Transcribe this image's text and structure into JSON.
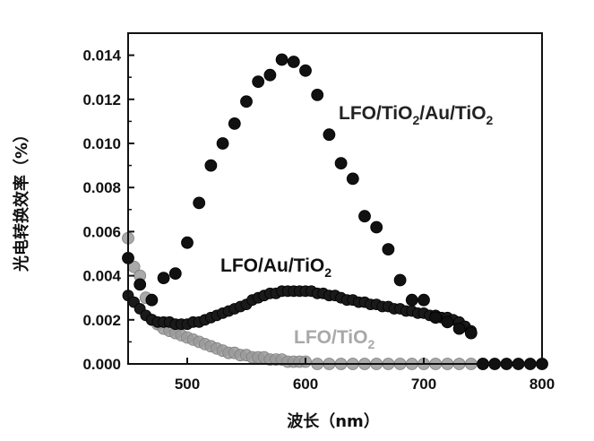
{
  "chart_data": {
    "type": "scatter",
    "xlabel": "波长（nm）",
    "ylabel": "光电转换效率（%）",
    "xlim": [
      450,
      800
    ],
    "ylim": [
      0,
      0.015
    ],
    "x_ticks": [
      "500",
      "600",
      "700",
      "800"
    ],
    "y_ticks": [
      "0.000",
      "0.002",
      "0.004",
      "0.006",
      "0.008",
      "0.010",
      "0.012",
      "0.014"
    ],
    "grid": false,
    "series": [
      {
        "name": "LFO/TiO2/Au/TiO2",
        "label_main": "LFO/TiO",
        "label_sub1": "2",
        "label_mid": "/Au/TiO",
        "label_sub2": "2",
        "color": "#111111",
        "x": [
          450,
          460,
          470,
          480,
          490,
          500,
          510,
          520,
          530,
          540,
          550,
          560,
          570,
          580,
          590,
          600,
          610,
          620,
          630,
          640,
          650,
          660,
          670,
          680,
          690,
          700,
          710,
          720,
          730,
          740,
          750,
          760,
          770,
          780,
          790,
          800
        ],
        "y": [
          0.0048,
          0.0036,
          0.0029,
          0.0039,
          0.0041,
          0.0055,
          0.0073,
          0.009,
          0.01,
          0.0109,
          0.0119,
          0.0128,
          0.0131,
          0.0138,
          0.0137,
          0.0133,
          0.0122,
          0.0104,
          0.0091,
          0.0084,
          0.0067,
          0.0062,
          0.0052,
          0.0038,
          0.0029,
          0.0029,
          0.0021,
          0.0019,
          0.0016,
          0.0014,
          0.0,
          0.0,
          0.0,
          0.0,
          0.0,
          0.0
        ]
      },
      {
        "name": "LFO/Au/TiO2",
        "label_main": "LFO/Au/TiO",
        "label_sub": "2",
        "color": "#1a1a1a",
        "x": [
          450,
          455,
          460,
          465,
          470,
          475,
          480,
          485,
          490,
          495,
          500,
          505,
          510,
          515,
          520,
          525,
          530,
          535,
          540,
          545,
          550,
          555,
          560,
          565,
          570,
          575,
          580,
          585,
          590,
          595,
          600,
          605,
          610,
          615,
          620,
          625,
          630,
          635,
          640,
          645,
          650,
          655,
          660,
          665,
          670,
          675,
          680,
          685,
          690,
          695,
          700,
          705,
          710,
          715,
          720,
          725,
          730,
          735,
          740
        ],
        "y": [
          0.0031,
          0.0028,
          0.0025,
          0.0022,
          0.002,
          0.0019,
          0.0019,
          0.0019,
          0.0018,
          0.0018,
          0.0018,
          0.0019,
          0.0019,
          0.002,
          0.0021,
          0.0022,
          0.0023,
          0.0024,
          0.0025,
          0.0026,
          0.0027,
          0.0029,
          0.003,
          0.0031,
          0.0032,
          0.0032,
          0.0033,
          0.0033,
          0.0033,
          0.0033,
          0.0033,
          0.0033,
          0.0032,
          0.0032,
          0.0031,
          0.0031,
          0.003,
          0.0029,
          0.0029,
          0.0028,
          0.0028,
          0.0027,
          0.0027,
          0.0026,
          0.0026,
          0.0025,
          0.0025,
          0.0024,
          0.0024,
          0.0023,
          0.0023,
          0.0022,
          0.0022,
          0.0021,
          0.0021,
          0.002,
          0.0019,
          0.0017,
          0.0015
        ]
      },
      {
        "name": "LFO/TiO2",
        "label_main": "LFO/TiO",
        "label_sub": "2",
        "color": "#9a9a9a",
        "x": [
          450,
          455,
          460,
          465,
          470,
          475,
          480,
          485,
          490,
          495,
          500,
          505,
          510,
          515,
          520,
          525,
          530,
          535,
          540,
          545,
          550,
          555,
          560,
          565,
          570,
          575,
          580,
          585,
          590,
          595,
          600,
          610,
          620,
          630,
          640,
          650,
          660,
          670,
          680,
          690,
          700,
          710,
          720,
          730,
          740,
          750
        ],
        "y": [
          0.0057,
          0.0044,
          0.004,
          0.003,
          0.002,
          0.0018,
          0.0016,
          0.0015,
          0.0014,
          0.0013,
          0.0012,
          0.0011,
          0.001,
          0.0009,
          0.0008,
          0.0007,
          0.0006,
          0.0005,
          0.0005,
          0.0004,
          0.0004,
          0.0003,
          0.0003,
          0.0003,
          0.0002,
          0.0002,
          0.0002,
          0.0001,
          0.0001,
          0.0001,
          0.0001,
          0.0,
          0.0,
          0.0,
          0.0,
          0.0,
          0.0,
          0.0,
          0.0,
          0.0,
          0.0,
          0.0,
          0.0,
          0.0,
          0.0,
          0.0
        ]
      }
    ]
  }
}
